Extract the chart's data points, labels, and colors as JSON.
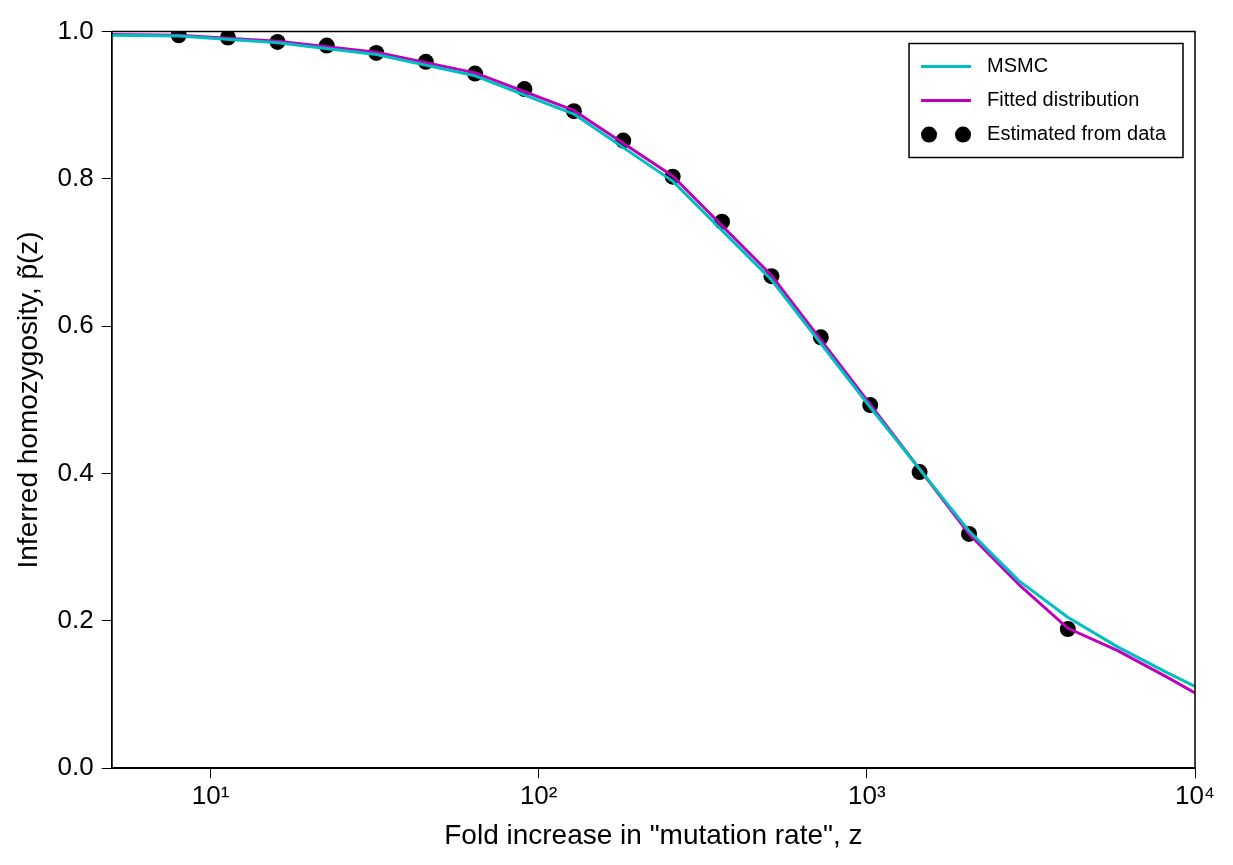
{
  "chart_data": {
    "type": "line",
    "xlabel": "Fold increase in \"mutation rate\", z",
    "ylabel": "Inferred homozygosity, p̃(z)",
    "log": "x",
    "xlim": [
      5,
      10000
    ],
    "xticks": [
      {
        "value": 10,
        "label": "10¹"
      },
      {
        "value": 100,
        "label": "10²"
      },
      {
        "value": 1000,
        "label": "10³"
      },
      {
        "value": 10000,
        "label": "10⁴"
      }
    ],
    "ylim": [
      0,
      1
    ],
    "yticks": [
      {
        "value": 0,
        "label": "0.0"
      },
      {
        "value": 0.2,
        "label": "0.2"
      },
      {
        "value": 0.4,
        "label": "0.4"
      },
      {
        "value": 0.6,
        "label": "0.6"
      },
      {
        "value": 0.8,
        "label": "0.8"
      },
      {
        "value": 1,
        "label": "1.0"
      }
    ],
    "grid": false,
    "legend": "top right",
    "series": [
      {
        "name": "MSMC",
        "color": "#00bfbf",
        "marker": "none",
        "x": [
          5,
          8,
          16,
          32,
          64,
          128,
          256,
          512,
          1024,
          2048,
          2896,
          4096,
          5793,
          8192,
          10000
        ],
        "values": [
          0.995,
          0.994,
          0.985,
          0.969,
          0.94,
          0.888,
          0.797,
          0.663,
          0.49,
          0.322,
          0.255,
          0.205,
          0.165,
          0.13,
          0.111
        ]
      },
      {
        "name": "Fitted distribution",
        "color": "#bf00bf",
        "marker": "none",
        "x": [
          5,
          8,
          16,
          32,
          64,
          128,
          256,
          512,
          1024,
          2048,
          2896,
          4096,
          5793,
          8192,
          10000
        ],
        "values": [
          0.996,
          0.995,
          0.987,
          0.972,
          0.944,
          0.893,
          0.804,
          0.669,
          0.494,
          0.318,
          0.25,
          0.19,
          0.16,
          0.124,
          0.102
        ]
      },
      {
        "name": "Estimated from data",
        "type": "scatter",
        "color": "#000000",
        "marker": "circle",
        "x": [
          8,
          11.3,
          16,
          22.6,
          32,
          45.3,
          64,
          90.5,
          128,
          181,
          256,
          362,
          512,
          724,
          1024,
          1448,
          2048,
          4096
        ],
        "values": [
          0.995,
          0.992,
          0.986,
          0.981,
          0.971,
          0.959,
          0.943,
          0.922,
          0.892,
          0.852,
          0.803,
          0.742,
          0.668,
          0.585,
          0.493,
          0.402,
          0.318,
          0.189
        ]
      }
    ]
  }
}
